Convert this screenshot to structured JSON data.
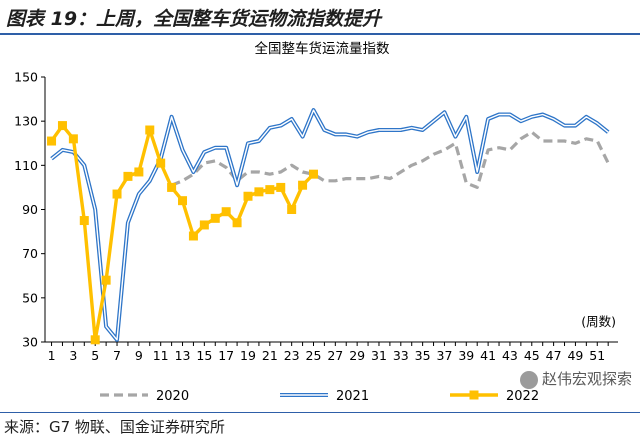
{
  "header": {
    "figure_title": "图表 19：上周，全国整车货运物流指数提升",
    "source": "来源：G7 物联、国金证券研究所",
    "watermark": "赵伟宏观探索"
  },
  "colors": {
    "series_2020": "#a6a6a6",
    "series_2021": "#2e75c8",
    "series_2022": "#ffc000",
    "rule": "#2e5fa8"
  },
  "chart_data": {
    "type": "line",
    "title": "全国整车货运流量指数",
    "xlabel": "(周数)",
    "ylabel": "",
    "ylim": [
      30,
      150
    ],
    "yticks": [
      30,
      50,
      70,
      90,
      110,
      130,
      150
    ],
    "xlim": [
      1,
      52
    ],
    "xticks": [
      1,
      3,
      5,
      7,
      9,
      11,
      13,
      15,
      17,
      19,
      21,
      23,
      25,
      27,
      29,
      31,
      33,
      35,
      37,
      39,
      41,
      43,
      45,
      47,
      49,
      51
    ],
    "grid": false,
    "legend_position": "bottom",
    "series": [
      {
        "name": "2020",
        "style": "dashed",
        "x": [
          12,
          13,
          14,
          15,
          16,
          17,
          18,
          19,
          20,
          21,
          22,
          23,
          24,
          25,
          26,
          27,
          28,
          29,
          30,
          31,
          32,
          33,
          34,
          35,
          36,
          37,
          38,
          39,
          40,
          41,
          42,
          43,
          44,
          45,
          46,
          47,
          48,
          49,
          50,
          51,
          52
        ],
        "values": [
          101,
          103,
          106,
          111,
          112,
          109,
          103,
          107,
          107,
          106,
          107,
          110,
          107,
          106,
          103,
          103,
          104,
          104,
          104,
          105,
          104,
          107,
          110,
          112,
          115,
          117,
          120,
          102,
          100,
          117,
          118,
          117,
          122,
          125,
          121,
          121,
          121,
          120,
          122,
          121,
          111
        ]
      },
      {
        "name": "2021",
        "style": "solid",
        "x": [
          1,
          2,
          3,
          4,
          5,
          6,
          7,
          8,
          9,
          10,
          11,
          12,
          13,
          14,
          15,
          16,
          17,
          18,
          19,
          20,
          21,
          22,
          23,
          24,
          25,
          26,
          27,
          28,
          29,
          30,
          31,
          32,
          33,
          34,
          35,
          36,
          37,
          38,
          39,
          40,
          41,
          42,
          43,
          44,
          45,
          46,
          47,
          48,
          49,
          50,
          51,
          52
        ],
        "values": [
          113,
          117,
          116,
          110,
          90,
          37,
          31,
          84,
          97,
          103,
          113,
          132,
          117,
          107,
          116,
          118,
          118,
          101,
          120,
          121,
          127,
          128,
          131,
          123,
          135,
          126,
          124,
          124,
          123,
          125,
          126,
          126,
          126,
          127,
          126,
          130,
          134,
          123,
          132,
          107,
          131,
          133,
          133,
          130,
          132,
          133,
          131,
          128,
          128,
          132,
          129,
          125
        ]
      },
      {
        "name": "2022",
        "style": "solid-square",
        "x": [
          1,
          2,
          3,
          4,
          5,
          6,
          7,
          8,
          9,
          10,
          11,
          12,
          13,
          14,
          15,
          16,
          17,
          18,
          19,
          20,
          21,
          22,
          23,
          24,
          25
        ],
        "values": [
          121,
          128,
          122,
          85,
          31,
          58,
          97,
          105,
          107,
          126,
          111,
          100,
          94,
          78,
          83,
          86,
          89,
          84,
          96,
          98,
          99,
          100,
          90,
          101,
          106
        ]
      }
    ]
  }
}
